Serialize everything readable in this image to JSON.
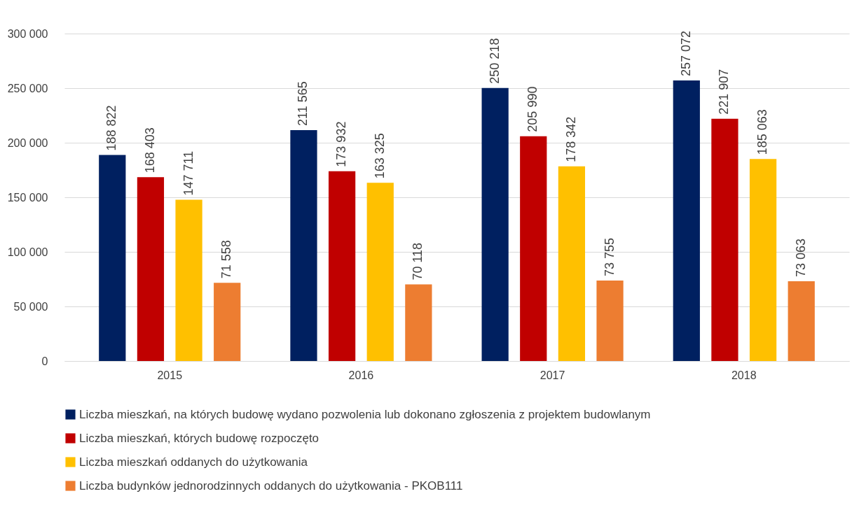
{
  "chart_data": {
    "type": "bar",
    "categories": [
      "2015",
      "2016",
      "2017",
      "2018"
    ],
    "series": [
      {
        "name": "Liczba mieszkań, na których budowę wydano pozwolenia lub dokonano zgłoszenia z projektem budowlanym",
        "color": "#002060",
        "values": [
          188822,
          211565,
          250218,
          257072
        ],
        "value_labels": [
          "188 822",
          "211 565",
          "250 218",
          "257 072"
        ]
      },
      {
        "name": "Liczba mieszkań, których budowę rozpoczęto",
        "color": "#c00000",
        "values": [
          168403,
          173932,
          205990,
          221907
        ],
        "value_labels": [
          "168 403",
          "173 932",
          "205 990",
          "221 907"
        ]
      },
      {
        "name": "Liczba mieszkań oddanych do użytkowania",
        "color": "#ffc000",
        "values": [
          147711,
          163325,
          178342,
          185063
        ],
        "value_labels": [
          "147 711",
          "163 325",
          "178 342",
          "185 063"
        ]
      },
      {
        "name": "Liczba budynków jednorodzinnych oddanych do użytkowania - PKOB111",
        "color": "#ed7d31",
        "values": [
          71558,
          70118,
          73755,
          73063
        ],
        "value_labels": [
          "71 558",
          "70 118",
          "73 755",
          "73 063"
        ]
      }
    ],
    "ylim": [
      0,
      300000
    ],
    "yticks": [
      {
        "value": 0,
        "label": "0"
      },
      {
        "value": 50000,
        "label": "50 000"
      },
      {
        "value": 100000,
        "label": "100 000"
      },
      {
        "value": 150000,
        "label": "150 000"
      },
      {
        "value": 200000,
        "label": "200 000"
      },
      {
        "value": 250000,
        "label": "250 000"
      },
      {
        "value": 300000,
        "label": "300 000"
      }
    ],
    "grid": "y",
    "legend": "bottom"
  }
}
